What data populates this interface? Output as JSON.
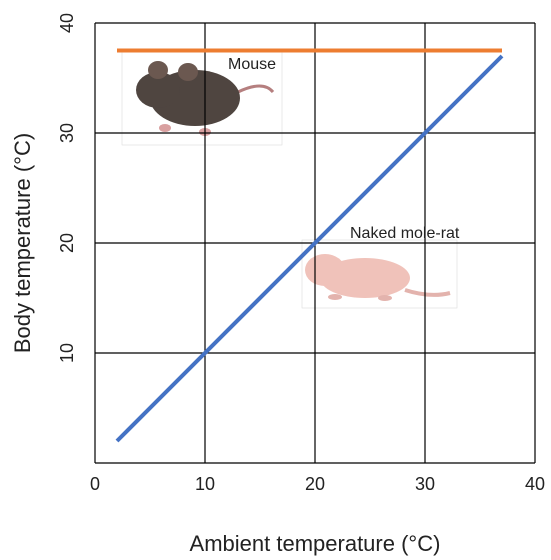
{
  "chart_data": {
    "type": "line",
    "x_label": "Ambient temperature (°C)",
    "y_label": "Body temperature (°C)",
    "x": [
      2,
      37
    ],
    "series": [
      {
        "name": "Mouse",
        "color": "#ed7d31",
        "values": [
          37.5,
          37.5
        ]
      },
      {
        "name": "Naked mole-rat",
        "color": "#4472c4",
        "values": [
          2,
          37
        ]
      }
    ],
    "xlim": [
      0,
      40
    ],
    "xticks": [
      0,
      10,
      20,
      30,
      40
    ],
    "ylim": [
      0,
      40
    ],
    "yticks": [
      10,
      20,
      30,
      40
    ],
    "grid": true
  }
}
